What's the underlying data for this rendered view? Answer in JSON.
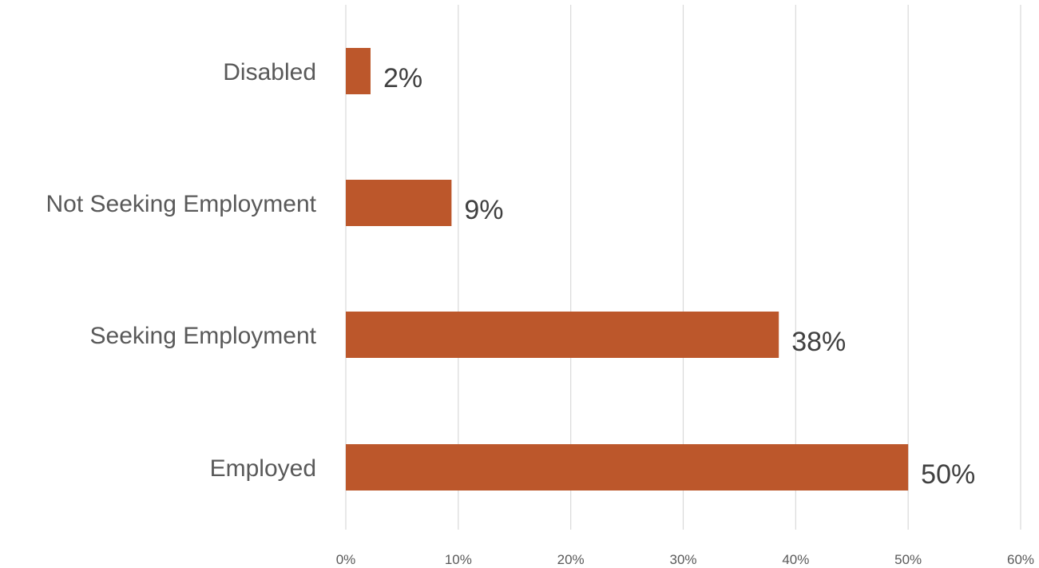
{
  "chart_data": {
    "type": "bar",
    "orientation": "horizontal",
    "title": "",
    "xlabel": "",
    "ylabel": "",
    "categories": [
      "Disabled",
      "Not Seeking Employment",
      "Seeking Employment",
      "Employed"
    ],
    "values": [
      2.2,
      9.4,
      38.5,
      50.0
    ],
    "data_labels": [
      "2%",
      "9%",
      "38%",
      "50%"
    ],
    "xlim": [
      0,
      60
    ],
    "xticks": [
      0,
      10,
      20,
      30,
      40,
      50,
      60
    ],
    "xtick_labels": [
      "0%",
      "10%",
      "20%",
      "30%",
      "40%",
      "50%",
      "60%"
    ],
    "grid": "vertical",
    "legend": "none",
    "bar_color": "#BC572B"
  }
}
